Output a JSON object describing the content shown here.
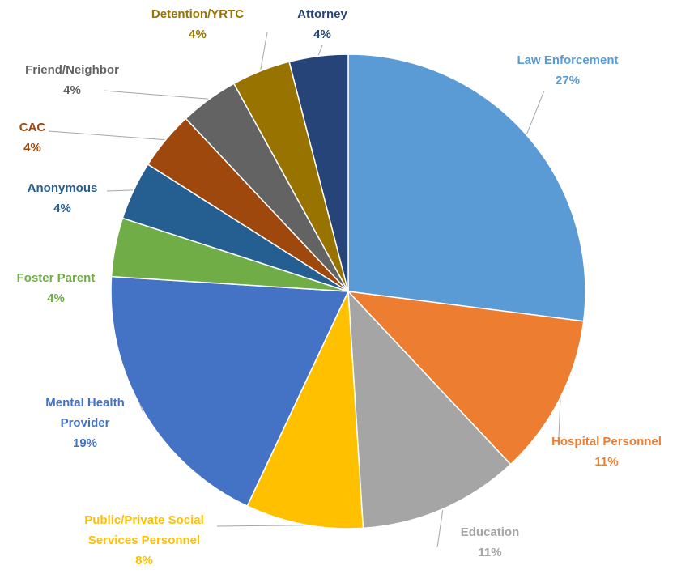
{
  "chart_data": {
    "type": "pie",
    "categories": [
      "Law Enforcement",
      "Hospital Personnel",
      "Education",
      "Public/Private Social Services Personnel",
      "Mental Health Provider",
      "Foster Parent",
      "Anonymous",
      "CAC",
      "Friend/Neighbor",
      "Detention/YRTC",
      "Attorney"
    ],
    "values": [
      27,
      11,
      11,
      8,
      19,
      4,
      4,
      4,
      4,
      4,
      4
    ],
    "value_labels": [
      "27%",
      "11%",
      "11%",
      "8%",
      "19%",
      "4%",
      "4%",
      "4%",
      "4%",
      "4%",
      "4%"
    ],
    "colors": [
      "#5b9bd5",
      "#ed7d31",
      "#a5a5a5",
      "#ffc000",
      "#4472c4",
      "#70ad47",
      "#255e91",
      "#9e480e",
      "#636363",
      "#997300",
      "#264478"
    ]
  }
}
